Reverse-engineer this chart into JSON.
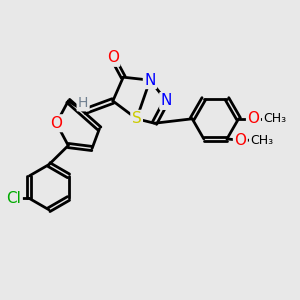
{
  "background_color": "#e8e8e8",
  "bond_color": "#000000",
  "bond_width": 2.0,
  "atom_colors": {
    "O": "#ff0000",
    "N": "#0000ff",
    "S": "#cccc00",
    "Cl": "#00aa00",
    "H": "#708090",
    "C": "#000000"
  },
  "font_size": 11,
  "small_font_size": 10
}
